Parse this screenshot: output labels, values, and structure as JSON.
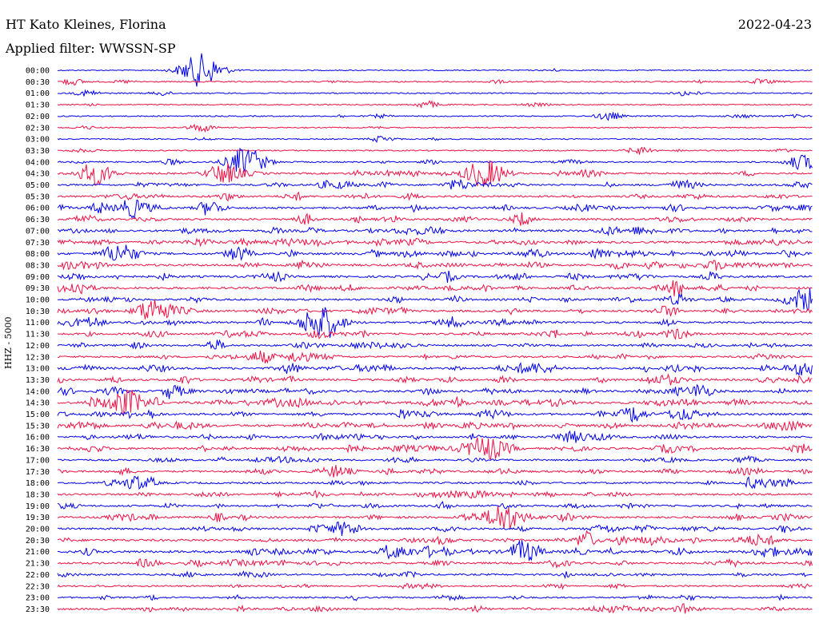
{
  "header": {
    "station": "HT Kato Kleines, Florina",
    "date": "2022-04-23",
    "filter": "Applied filter: WWSSN-SP"
  },
  "chart_data": {
    "type": "line",
    "title": "HT Kato Kleines, Florina",
    "ylabel": "HHZ - 5000",
    "colors": [
      "#0000ee",
      "#ee1144"
    ],
    "rows": [
      "00:00",
      "00:30",
      "01:00",
      "01:30",
      "02:00",
      "02:30",
      "03:00",
      "03:30",
      "04:00",
      "04:30",
      "05:00",
      "05:30",
      "06:00",
      "06:30",
      "07:00",
      "07:30",
      "08:00",
      "08:30",
      "09:00",
      "09:30",
      "10:00",
      "10:30",
      "11:00",
      "11:30",
      "12:00",
      "12:30",
      "13:00",
      "13:30",
      "14:00",
      "14:30",
      "15:00",
      "15:30",
      "16:00",
      "16:30",
      "17:00",
      "17:30",
      "18:00",
      "18:30",
      "19:00",
      "19:30",
      "20:00",
      "20:30",
      "21:00",
      "21:30",
      "22:00",
      "22:30",
      "23:00",
      "23:30"
    ],
    "activity": [
      0.05,
      0.2,
      0.15,
      0.08,
      0.15,
      0.08,
      0.08,
      0.15,
      0.25,
      0.45,
      0.5,
      0.55,
      0.65,
      0.65,
      0.7,
      0.7,
      0.75,
      0.75,
      0.65,
      0.7,
      0.6,
      0.65,
      0.65,
      0.65,
      0.55,
      0.55,
      0.7,
      0.65,
      0.75,
      0.8,
      0.7,
      0.8,
      0.6,
      0.65,
      0.5,
      0.55,
      0.55,
      0.55,
      0.55,
      0.65,
      0.6,
      0.8,
      0.85,
      0.6,
      0.45,
      0.35,
      0.35,
      0.55
    ],
    "events": [
      {
        "row": 0,
        "x": 0.19,
        "amp": 1.6
      },
      {
        "row": 1,
        "x": 0.02,
        "amp": 0.3
      },
      {
        "row": 2,
        "x": 0.04,
        "amp": 0.3
      },
      {
        "row": 3,
        "x": 0.49,
        "amp": 0.35
      },
      {
        "row": 4,
        "x": 0.73,
        "amp": 0.4
      },
      {
        "row": 5,
        "x": 0.19,
        "amp": 0.4
      },
      {
        "row": 6,
        "x": 0.43,
        "amp": 0.3
      },
      {
        "row": 7,
        "x": 0.77,
        "amp": 0.35
      },
      {
        "row": 8,
        "x": 0.25,
        "amp": 1.4
      },
      {
        "row": 8,
        "x": 0.99,
        "amp": 0.7
      },
      {
        "row": 9,
        "x": 0.05,
        "amp": 1.1
      },
      {
        "row": 9,
        "x": 0.22,
        "amp": 1.0
      },
      {
        "row": 9,
        "x": 0.57,
        "amp": 1.2
      },
      {
        "row": 10,
        "x": 0.53,
        "amp": 0.5
      },
      {
        "row": 12,
        "x": 0.1,
        "amp": 0.9
      },
      {
        "row": 16,
        "x": 0.08,
        "amp": 0.9
      },
      {
        "row": 20,
        "x": 0.99,
        "amp": 0.8
      },
      {
        "row": 21,
        "x": 0.13,
        "amp": 1.0
      },
      {
        "row": 22,
        "x": 0.35,
        "amp": 1.5
      },
      {
        "row": 23,
        "x": 0.82,
        "amp": 0.5
      },
      {
        "row": 25,
        "x": 0.27,
        "amp": 0.6
      },
      {
        "row": 26,
        "x": 0.99,
        "amp": 0.6
      },
      {
        "row": 28,
        "x": 0.85,
        "amp": 0.6
      },
      {
        "row": 29,
        "x": 0.09,
        "amp": 1.3
      },
      {
        "row": 30,
        "x": 0.76,
        "amp": 0.6
      },
      {
        "row": 33,
        "x": 0.57,
        "amp": 1.1
      },
      {
        "row": 36,
        "x": 0.93,
        "amp": 0.5
      },
      {
        "row": 39,
        "x": 0.59,
        "amp": 1.2
      },
      {
        "row": 40,
        "x": 0.38,
        "amp": 0.7
      },
      {
        "row": 42,
        "x": 0.62,
        "amp": 0.7
      }
    ]
  }
}
